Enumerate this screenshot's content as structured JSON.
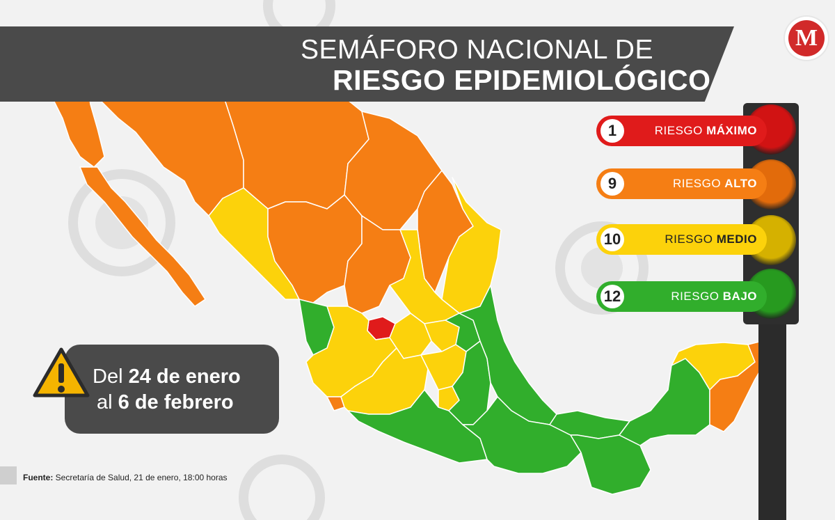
{
  "title": {
    "line1": "SEMÁFORO NACIONAL DE",
    "line2": "RIESGO EPIDEMIOLÓGICO"
  },
  "logo": {
    "letter": "M"
  },
  "legend": [
    {
      "count": "1",
      "prefix": "RIESGO ",
      "level": "MÁXIMO",
      "color": "#e01b1b",
      "text_color": "#ffffff"
    },
    {
      "count": "9",
      "prefix": "RIESGO ",
      "level": "ALTO",
      "color": "#f57e14",
      "text_color": "#ffffff"
    },
    {
      "count": "10",
      "prefix": "RIESGO ",
      "level": "MEDIO",
      "color": "#fcd20b",
      "text_color": "#222222"
    },
    {
      "count": "12",
      "prefix": "RIESGO ",
      "level": "BAJO",
      "color": "#31ae2c",
      "text_color": "#ffffff"
    }
  ],
  "traffic_light": {
    "lamps": [
      {
        "name": "red",
        "color": "#d11313"
      },
      {
        "name": "orange",
        "color": "#e26b0b"
      },
      {
        "name": "yellow",
        "color": "#d5b100"
      },
      {
        "name": "green",
        "color": "#279a1f"
      }
    ]
  },
  "date": {
    "line1_prefix": "Del ",
    "line1_bold": "24 de enero",
    "line2_prefix": "al ",
    "line2_bold": "6 de febrero"
  },
  "source": {
    "label": "Fuente:",
    "text": " Secretaría de Salud, 21 de enero, 18:00 horas"
  },
  "map": {
    "risk_colors": {
      "maximo": "#e01b1b",
      "alto": "#f57e14",
      "medio": "#fcd20b",
      "bajo": "#31ae2c"
    }
  }
}
